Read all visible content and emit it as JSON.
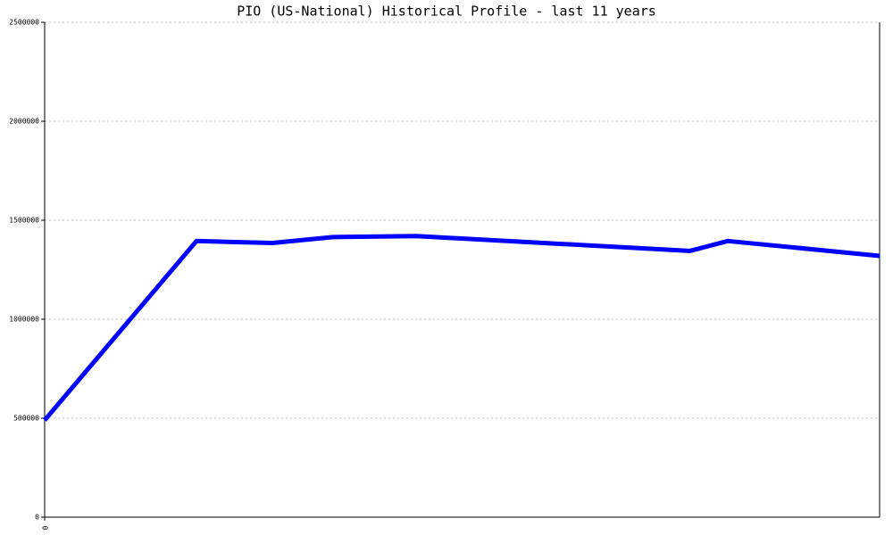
{
  "chart_data": {
    "type": "line",
    "title": "PIO (US-National) Historical Profile - last 11 years",
    "x": [
      0,
      2,
      3,
      3.8,
      4.9,
      8.5,
      9,
      11
    ],
    "series": [
      {
        "color": "#0000ff",
        "values": [
          490000,
          1395000,
          1385000,
          1415000,
          1420000,
          1345000,
          1395000,
          1320000
        ]
      }
    ],
    "xlim": [
      0,
      11
    ],
    "xticks": [
      0
    ],
    "ylim": [
      0,
      2500000
    ],
    "yticks": [
      0,
      500000,
      1000000,
      1500000,
      2000000,
      2500000
    ],
    "grid": true
  }
}
